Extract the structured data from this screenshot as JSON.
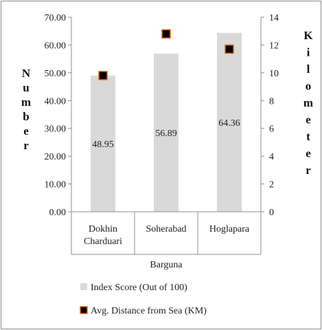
{
  "chart_data": {
    "type": "bar",
    "categories": [
      [
        "Dokhin",
        "Charduari"
      ],
      [
        "Soherabad"
      ],
      [
        "Hoglapara"
      ]
    ],
    "xlabel": "Barguna",
    "ylabel": "Number",
    "y2label": "Kilometer",
    "ylim": [
      0,
      70
    ],
    "y2lim": [
      0,
      14
    ],
    "yticks": [
      "0.00",
      "10.00",
      "20.00",
      "30.00",
      "40.00",
      "50.00",
      "60.00",
      "70.00"
    ],
    "y2ticks": [
      "0",
      "2",
      "4",
      "6",
      "8",
      "10",
      "12",
      "14"
    ],
    "series": [
      {
        "name": "Index Score (Out of 100)",
        "type": "bar",
        "axis": "left",
        "values": [
          48.95,
          56.89,
          64.36
        ],
        "labels": [
          "48.95",
          "56.89",
          "64.36"
        ],
        "color": "#d9d9d9"
      },
      {
        "name": "Avg. Distance from Sea (KM)",
        "type": "marker",
        "axis": "right",
        "values": [
          9.8,
          12.8,
          11.7
        ],
        "color": "#000000",
        "edge_color": "#e46c0a"
      }
    ],
    "grid": false,
    "legend": "bottom"
  }
}
